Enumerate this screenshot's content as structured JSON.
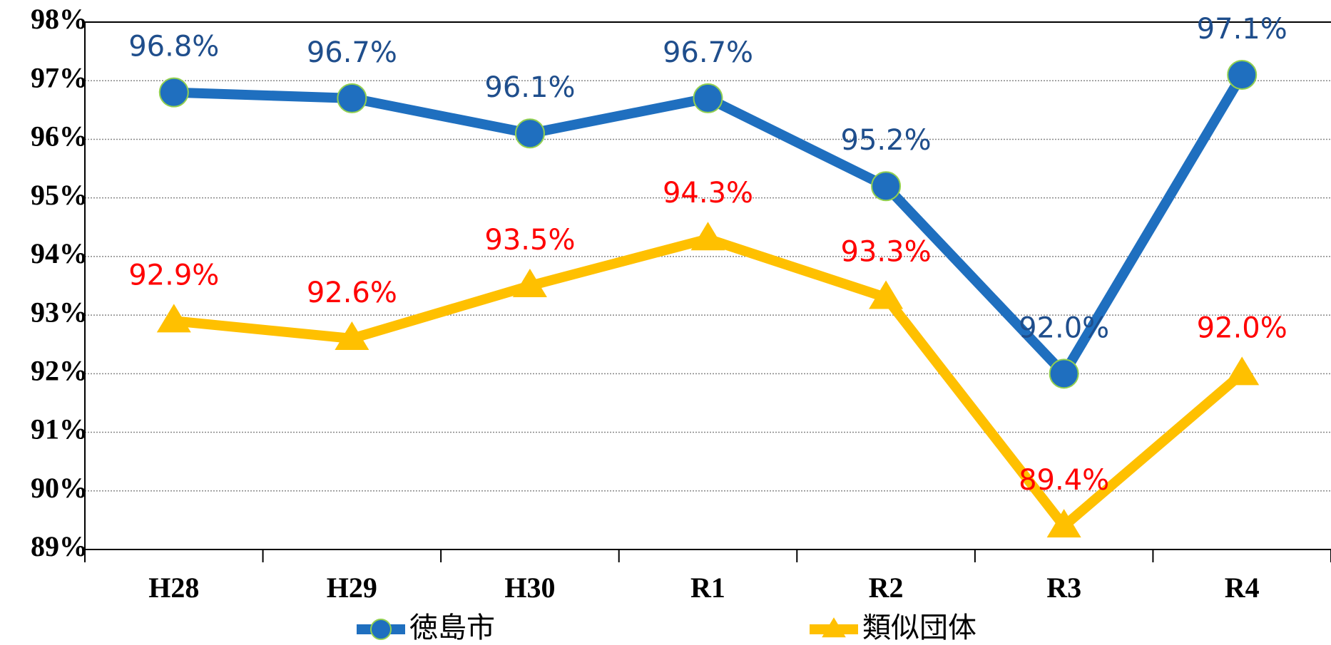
{
  "chart_data": {
    "type": "line",
    "categories": [
      "H28",
      "H29",
      "H30",
      "R1",
      "R2",
      "R3",
      "R4"
    ],
    "series": [
      {
        "name": "徳島市",
        "color": "#1f6fbf",
        "label_color": "#1f4e8c",
        "marker": "circle",
        "values": [
          96.8,
          96.7,
          96.1,
          96.7,
          95.2,
          92.0,
          97.1
        ],
        "value_labels": [
          "96.8%",
          "96.7%",
          "96.1%",
          "96.7%",
          "95.2%",
          "92.0%",
          "97.1%"
        ]
      },
      {
        "name": "類似団体",
        "color": "#ffc000",
        "label_color": "#ff0000",
        "marker": "triangle",
        "values": [
          92.9,
          92.6,
          93.5,
          94.3,
          93.3,
          89.4,
          92.0
        ],
        "value_labels": [
          "92.9%",
          "92.6%",
          "93.5%",
          "94.3%",
          "93.3%",
          "89.4%",
          "92.0%"
        ]
      }
    ],
    "ylim": [
      89,
      98
    ],
    "yticks": [
      {
        "value": 89,
        "label": "89%"
      },
      {
        "value": 90,
        "label": "90%"
      },
      {
        "value": 91,
        "label": "91%"
      },
      {
        "value": 92,
        "label": "92%"
      },
      {
        "value": 93,
        "label": "93%"
      },
      {
        "value": 94,
        "label": "94%"
      },
      {
        "value": 95,
        "label": "95%"
      },
      {
        "value": 96,
        "label": "96%"
      },
      {
        "value": 97,
        "label": "97%"
      },
      {
        "value": 98,
        "label": "98%"
      }
    ],
    "grid": true
  }
}
